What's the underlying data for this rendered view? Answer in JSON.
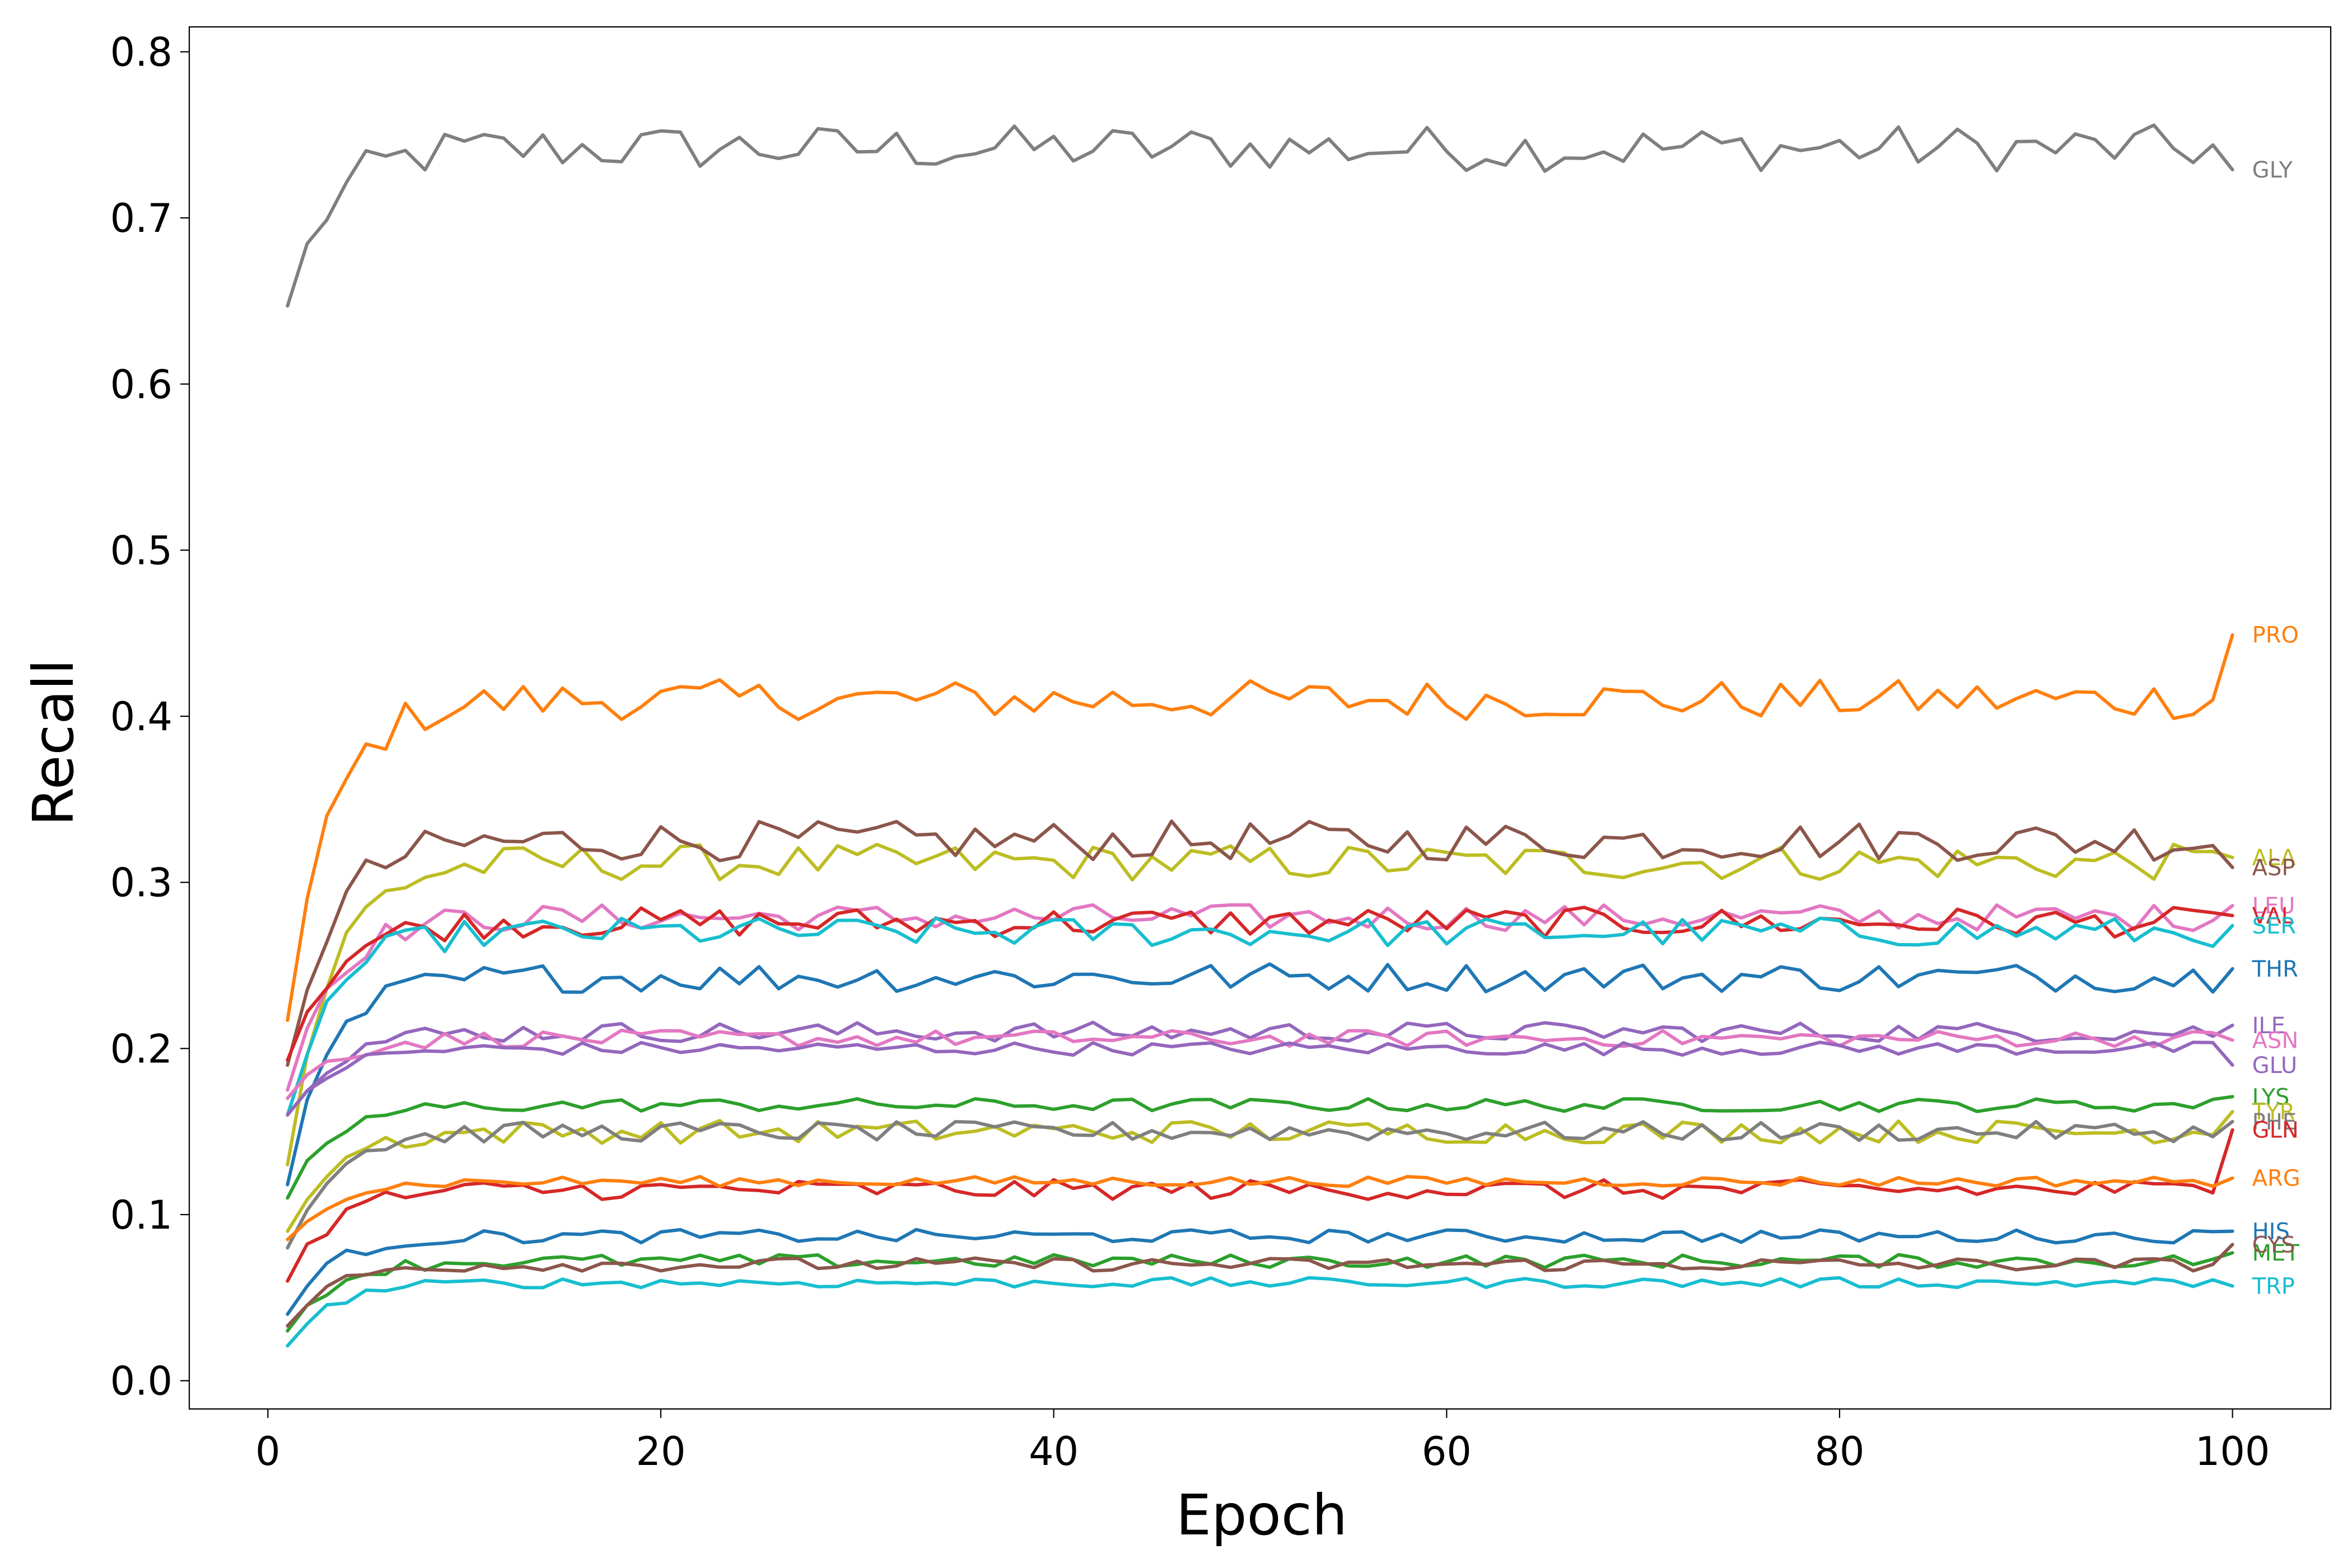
{
  "chart_data": {
    "type": "line",
    "title": "",
    "xlabel": "Epoch",
    "ylabel": "Recall",
    "xlim": [
      -4,
      105
    ],
    "ylim": [
      -0.017,
      0.815
    ],
    "xticks": [
      0,
      20,
      40,
      60,
      80,
      100
    ],
    "yticks": [
      0.0,
      0.1,
      0.2,
      0.3,
      0.4,
      0.5,
      0.6,
      0.7,
      0.8
    ],
    "grid": false,
    "legend": "labels at line ends",
    "x": {
      "start": 1,
      "end": 100,
      "step": 1
    },
    "series": [
      {
        "name": "GLY",
        "color": "#7f7f7f",
        "start": 0.647,
        "plateau": 0.742,
        "noise": 0.014,
        "end": 0.729
      },
      {
        "name": "PRO",
        "color": "#ff7f0e",
        "start": 0.217,
        "plateau": 0.41,
        "noise": 0.012,
        "end": 0.449
      },
      {
        "name": "ALA",
        "color": "#bcbd22",
        "start": 0.13,
        "plateau": 0.312,
        "noise": 0.011,
        "end": 0.315
      },
      {
        "name": "ASP",
        "color": "#8c564b",
        "start": 0.19,
        "plateau": 0.325,
        "noise": 0.012,
        "end": 0.309
      },
      {
        "name": "LEU",
        "color": "#e377c2",
        "start": 0.175,
        "plateau": 0.279,
        "noise": 0.008,
        "end": 0.286
      },
      {
        "name": "VAL",
        "color": "#d62728",
        "start": 0.193,
        "plateau": 0.276,
        "noise": 0.009,
        "end": 0.28
      },
      {
        "name": "SER",
        "color": "#17becf",
        "start": 0.16,
        "plateau": 0.27,
        "noise": 0.009,
        "end": 0.274
      },
      {
        "name": "THR",
        "color": "#1f77b4",
        "start": 0.118,
        "plateau": 0.243,
        "noise": 0.009,
        "end": 0.248
      },
      {
        "name": "ILE",
        "color": "#9467bd",
        "start": 0.16,
        "plateau": 0.21,
        "noise": 0.006,
        "end": 0.214
      },
      {
        "name": "ASN",
        "color": "#e377c2",
        "start": 0.17,
        "plateau": 0.206,
        "noise": 0.005,
        "end": 0.205
      },
      {
        "name": "GLU",
        "color": "#9467bd",
        "start": 0.16,
        "plateau": 0.2,
        "noise": 0.004,
        "end": 0.19
      },
      {
        "name": "LYS",
        "color": "#2ca02c",
        "start": 0.11,
        "plateau": 0.166,
        "noise": 0.004,
        "end": 0.171
      },
      {
        "name": "TYR",
        "color": "#bcbd22",
        "start": 0.09,
        "plateau": 0.15,
        "noise": 0.007,
        "end": 0.162
      },
      {
        "name": "PHE",
        "color": "#7f7f7f",
        "start": 0.08,
        "plateau": 0.15,
        "noise": 0.006,
        "end": 0.156
      },
      {
        "name": "GLN",
        "color": "#d62728",
        "start": 0.06,
        "plateau": 0.115,
        "noise": 0.006,
        "end": 0.151
      },
      {
        "name": "ARG",
        "color": "#ff7f0e",
        "start": 0.085,
        "plateau": 0.12,
        "noise": 0.003,
        "end": 0.122
      },
      {
        "name": "HIS",
        "color": "#1f77b4",
        "start": 0.04,
        "plateau": 0.087,
        "noise": 0.004,
        "end": 0.09
      },
      {
        "name": "MET",
        "color": "#2ca02c",
        "start": 0.03,
        "plateau": 0.072,
        "noise": 0.004,
        "end": 0.077
      },
      {
        "name": "CYS",
        "color": "#8c564b",
        "start": 0.033,
        "plateau": 0.07,
        "noise": 0.004,
        "end": 0.082
      },
      {
        "name": "TRP",
        "color": "#17becf",
        "start": 0.021,
        "plateau": 0.059,
        "noise": 0.003,
        "end": 0.057
      }
    ]
  }
}
